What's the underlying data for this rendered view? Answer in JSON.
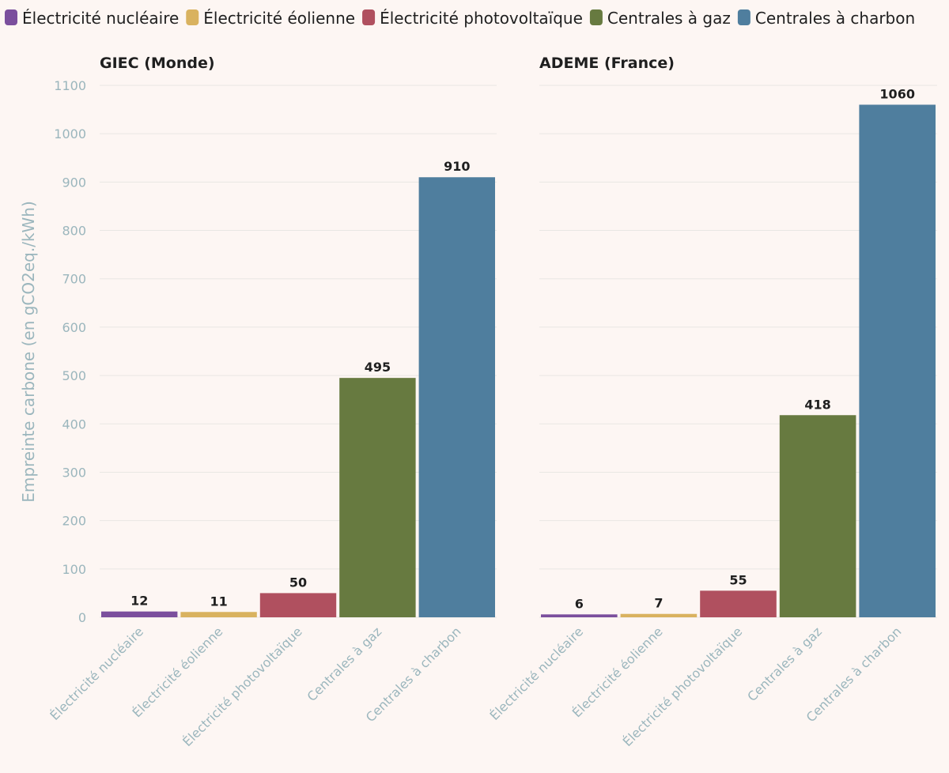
{
  "chart_data": [
    {
      "type": "bar",
      "title": "GIEC (Monde)",
      "categories": [
        "Électricité nucléaire",
        "Électricité éolienne",
        "Électricité photovoltaïque",
        "Centrales à gaz",
        "Centrales à charbon"
      ],
      "values": [
        12,
        11,
        50,
        495,
        910
      ],
      "ylabel": "Empreinte carbone (en gCO2eq./kWh)",
      "ylim": [
        0,
        1100
      ],
      "yticks": [
        0,
        100,
        200,
        300,
        400,
        500,
        600,
        700,
        800,
        900,
        1000,
        1100
      ],
      "grid": true
    },
    {
      "type": "bar",
      "title": "ADEME (France)",
      "categories": [
        "Électricité nucléaire",
        "Électricité éolienne",
        "Électricité photovoltaïque",
        "Centrales à gaz",
        "Centrales à charbon"
      ],
      "values": [
        6,
        7,
        55,
        418,
        1060
      ],
      "ylim": [
        0,
        1100
      ],
      "grid": true
    }
  ],
  "legend": {
    "placement": "top-left",
    "items": [
      {
        "label": "Électricité nucléaire",
        "color": "#7b4f9d"
      },
      {
        "label": "Électricité éolienne",
        "color": "#d9b25f"
      },
      {
        "label": "Électricité photovoltaïque",
        "color": "#b0505f"
      },
      {
        "label": "Centrales à gaz",
        "color": "#677a40"
      },
      {
        "label": "Centrales à charbon",
        "color": "#4f7e9e"
      }
    ]
  }
}
